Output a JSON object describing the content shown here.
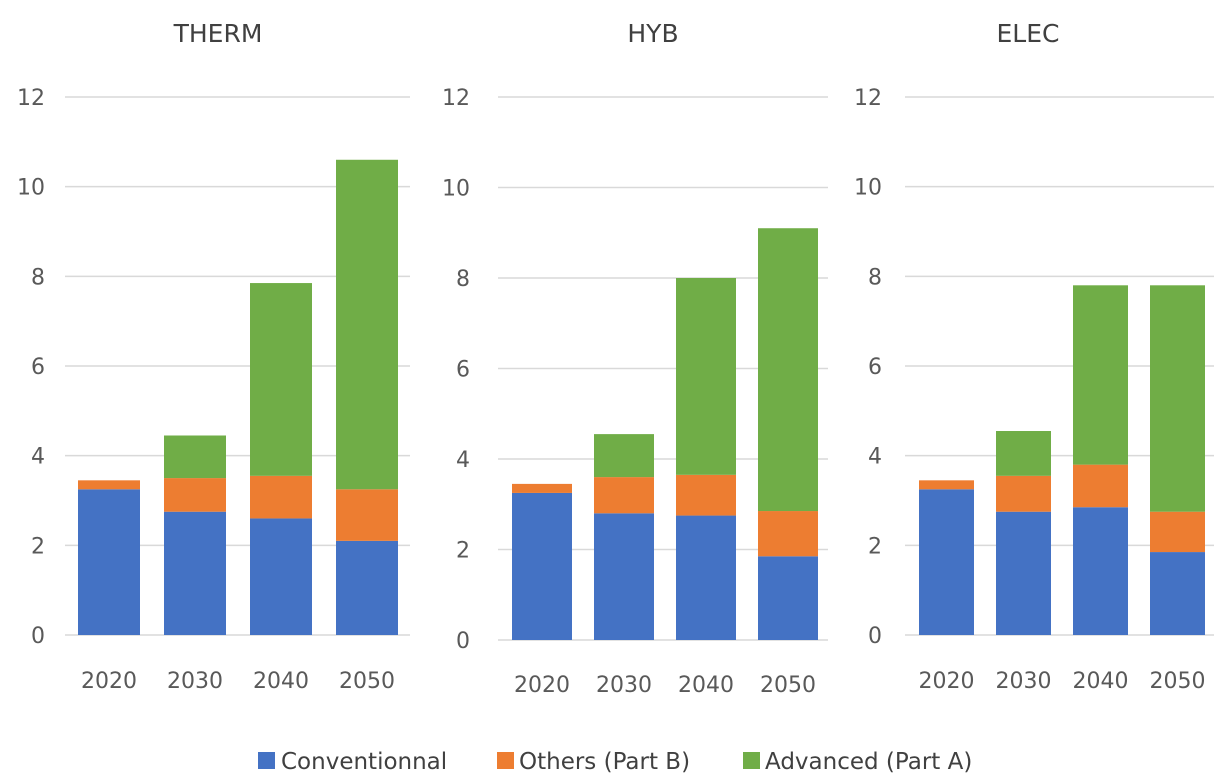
{
  "colors": {
    "conventional": "#4472C4",
    "others": "#ED7D31",
    "advanced": "#70AD47",
    "grid": "#d9d9d9",
    "text": "#595959"
  },
  "legend": {
    "items": [
      {
        "label": "Conventionnal",
        "color": "#4472C4"
      },
      {
        "label": "Others (Part B)",
        "color": "#ED7D31"
      },
      {
        "label": "Advanced (Part A)",
        "color": "#70AD47"
      }
    ],
    "placement": "bottom"
  },
  "chart_data": [
    {
      "type": "bar",
      "stacked": true,
      "title": "THERM",
      "categories": [
        "2020",
        "2030",
        "2040",
        "2050"
      ],
      "ylim": [
        0,
        12
      ],
      "yticks": [
        "0",
        "2",
        "4",
        "6",
        "8",
        "10",
        "12"
      ],
      "grid": true,
      "series": [
        {
          "name": "Conventionnal",
          "values": [
            3.25,
            2.75,
            2.6,
            2.1
          ]
        },
        {
          "name": "Others (Part B)",
          "values": [
            0.2,
            0.75,
            0.95,
            1.15
          ]
        },
        {
          "name": "Advanced (Part A)",
          "values": [
            0.0,
            0.95,
            4.3,
            7.35
          ]
        }
      ]
    },
    {
      "type": "bar",
      "stacked": true,
      "title": "HYB",
      "categories": [
        "2020",
        "2030",
        "2040",
        "2050"
      ],
      "ylim": [
        0,
        12
      ],
      "yticks": [
        "0",
        "2",
        "4",
        "6",
        "8",
        "10",
        "12"
      ],
      "grid": true,
      "series": [
        {
          "name": "Conventionnal",
          "values": [
            3.25,
            2.8,
            2.75,
            1.85
          ]
        },
        {
          "name": "Others (Part B)",
          "values": [
            0.2,
            0.8,
            0.9,
            1.0
          ]
        },
        {
          "name": "Advanced (Part A)",
          "values": [
            0.0,
            0.95,
            4.35,
            6.25
          ]
        }
      ]
    },
    {
      "type": "bar",
      "stacked": true,
      "title": "ELEC",
      "categories": [
        "2020",
        "2030",
        "2040",
        "2050"
      ],
      "ylim": [
        0,
        12
      ],
      "yticks": [
        "0",
        "2",
        "4",
        "6",
        "8",
        "10",
        "12"
      ],
      "grid": true,
      "series": [
        {
          "name": "Conventionnal",
          "values": [
            3.25,
            2.75,
            2.85,
            1.85
          ]
        },
        {
          "name": "Others (Part B)",
          "values": [
            0.2,
            0.8,
            0.95,
            0.9
          ]
        },
        {
          "name": "Advanced (Part A)",
          "values": [
            0.0,
            1.0,
            4.0,
            5.05
          ]
        }
      ]
    }
  ]
}
